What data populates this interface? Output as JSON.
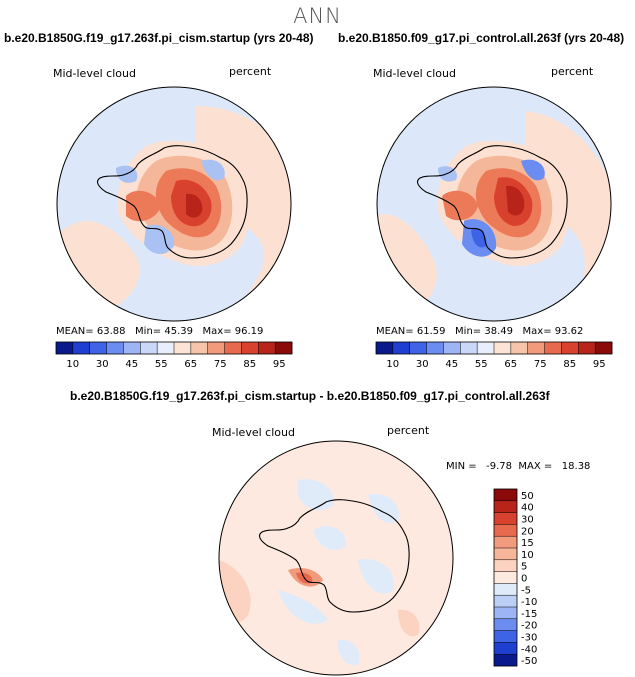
{
  "page": {
    "season": "ANN",
    "diff_title": "b.e20.B1850G.f19_g17.263f.pi_cism.startup - b.e20.B1850.f09_g17.pi_control.all.263f"
  },
  "panels": [
    {
      "case": "b.e20.B1850G.f19_g17.263f.pi_cism.startup (yrs 20-48)",
      "variable": "Mid-level cloud",
      "units": "percent",
      "mean_label": "MEAN=",
      "mean": "63.88",
      "min_label": "Min=",
      "min": "45.39",
      "max_label": "Max=",
      "max": "96.19"
    },
    {
      "case": "b.e20.B1850.f09_g17.pi_control.all.263f (yrs 20-48)",
      "variable": "Mid-level cloud",
      "units": "percent",
      "mean_label": "MEAN=",
      "mean": "61.59",
      "min_label": "Min=",
      "min": "38.49",
      "max_label": "Max=",
      "max": "93.62"
    }
  ],
  "diff_panel": {
    "variable": "Mid-level cloud",
    "units": "percent",
    "stats": "MIN =   -9.78  MAX =   18.38"
  },
  "colorbar_abs": {
    "ticks": [
      "10",
      "30",
      "45",
      "55",
      "65",
      "75",
      "85",
      "95"
    ],
    "colors": [
      "#0a1a8c",
      "#1f3fd0",
      "#3f63e6",
      "#6b8cf0",
      "#9db4f5",
      "#c9d8f8",
      "#e8eefb",
      "#fbe3d6",
      "#f7c4ab",
      "#f29a7c",
      "#e86a4e",
      "#d8412d",
      "#b8241a",
      "#8a0a0a"
    ]
  },
  "colorbar_diff": {
    "ticks": [
      "50",
      "40",
      "30",
      "20",
      "15",
      "10",
      "5",
      "0",
      "-5",
      "-10",
      "-15",
      "-20",
      "-30",
      "-40",
      "-50"
    ],
    "colors": [
      "#8a0a0a",
      "#b8241a",
      "#d8412d",
      "#e86a4e",
      "#f29a7c",
      "#f7b59a",
      "#fbd3c0",
      "#fde9df",
      "#e0ebfa",
      "#bcd0f6",
      "#9db4f5",
      "#6b8cf0",
      "#3f63e6",
      "#1f3fd0",
      "#0a1a8c"
    ]
  },
  "map_colors": {
    "ocean_light_blue": "#dce8fa",
    "mid_blue": "#a9c2f3",
    "peach": "#fce1d2",
    "salmon": "#f5b79a",
    "orange_red": "#ec7a58",
    "red": "#d8412d",
    "dark_red": "#b8241a"
  }
}
